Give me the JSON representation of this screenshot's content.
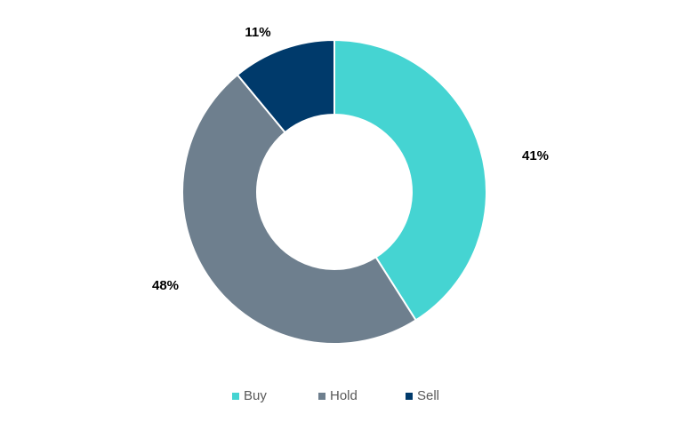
{
  "chart_data": {
    "type": "pie",
    "variant": "donut",
    "categories": [
      "Buy",
      "Hold",
      "Sell"
    ],
    "values": [
      41,
      48,
      11
    ],
    "data_labels": [
      "41%",
      "48%",
      "11%"
    ],
    "colors": [
      "#45D4D2",
      "#6E7F8E",
      "#003A6B"
    ],
    "title": "",
    "legend_placement": "bottom"
  },
  "legend": {
    "items": [
      {
        "label": "Buy",
        "color": "#45D4D2"
      },
      {
        "label": "Hold",
        "color": "#6E7F8E"
      },
      {
        "label": "Sell",
        "color": "#003A6B"
      }
    ]
  }
}
